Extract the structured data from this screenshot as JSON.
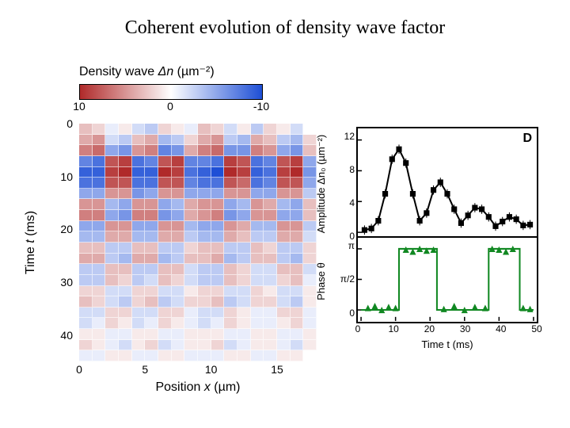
{
  "title": "Coherent evolution of density wave factor",
  "colorbar": {
    "title_prefix": "Density wave  ",
    "title_sym": "Δn",
    "title_unit": " (µm⁻²)",
    "ticks": [
      "10",
      "0",
      "-10"
    ],
    "vmin": -10,
    "vmax": 10,
    "neg_color": "#1e4fd6",
    "zero_color": "#ffffff",
    "pos_color": "#b02a2a"
  },
  "heatmap": {
    "xlabel_prefix": "Position ",
    "xlabel_sym": "x",
    "xlabel_unit": " (µm)",
    "ylabel_prefix": "Time ",
    "ylabel_sym": "t",
    "ylabel_unit": " (ms)",
    "x_ticks": [
      0,
      5,
      10,
      15
    ],
    "y_ticks": [
      0,
      10,
      20,
      30,
      40
    ],
    "x_min": 0,
    "x_max": 18,
    "y_min": 0,
    "y_max": 45,
    "nx": 18,
    "ny": 22,
    "cells": [
      [
        3,
        2,
        -1,
        1,
        -2,
        -3,
        2,
        1,
        -1,
        3,
        2,
        -2,
        1,
        -3,
        2,
        1,
        -2,
        0
      ],
      [
        4,
        5,
        -2,
        -3,
        3,
        4,
        -4,
        -3,
        2,
        4,
        5,
        -3,
        -4,
        4,
        3,
        -3,
        -4,
        2
      ],
      [
        6,
        7,
        -5,
        -6,
        5,
        6,
        -7,
        -6,
        4,
        6,
        7,
        -6,
        -6,
        6,
        5,
        -5,
        -6,
        3
      ],
      [
        -7,
        -8,
        8,
        9,
        -8,
        -7,
        8,
        9,
        -7,
        -7,
        -8,
        9,
        8,
        -8,
        -7,
        8,
        9,
        -5
      ],
      [
        -9,
        -9,
        9,
        10,
        -9,
        -9,
        10,
        9,
        -8,
        -9,
        -10,
        10,
        9,
        -9,
        -8,
        9,
        10,
        -6
      ],
      [
        -8,
        -8,
        8,
        8,
        -8,
        -8,
        8,
        8,
        -7,
        -8,
        -8,
        8,
        7,
        -8,
        -7,
        8,
        8,
        -5
      ],
      [
        -5,
        -5,
        5,
        5,
        -6,
        -5,
        5,
        5,
        -5,
        -5,
        -5,
        5,
        5,
        -5,
        -5,
        5,
        5,
        -3
      ],
      [
        5,
        5,
        -4,
        -5,
        5,
        5,
        -5,
        -4,
        4,
        5,
        5,
        -5,
        -4,
        5,
        4,
        -4,
        -5,
        3
      ],
      [
        6,
        6,
        -5,
        -6,
        6,
        6,
        -6,
        -5,
        4,
        5,
        6,
        -6,
        -5,
        5,
        5,
        -5,
        -5,
        3
      ],
      [
        -5,
        -5,
        5,
        5,
        -5,
        -5,
        5,
        5,
        -4,
        -5,
        -5,
        5,
        4,
        -4,
        -4,
        5,
        5,
        -3
      ],
      [
        -4,
        -4,
        4,
        4,
        -4,
        -4,
        4,
        4,
        -3,
        -4,
        -4,
        4,
        3,
        -3,
        -3,
        4,
        4,
        -2
      ],
      [
        3,
        3,
        -3,
        -3,
        3,
        3,
        -3,
        -3,
        2,
        3,
        3,
        -3,
        -3,
        3,
        2,
        -3,
        -3,
        2
      ],
      [
        4,
        4,
        -3,
        -4,
        4,
        4,
        -4,
        -3,
        3,
        3,
        4,
        -4,
        -3,
        3,
        3,
        -3,
        -4,
        2
      ],
      [
        -3,
        -3,
        3,
        3,
        -3,
        -3,
        3,
        3,
        -2,
        -3,
        -3,
        3,
        2,
        -2,
        -2,
        3,
        3,
        -2
      ],
      [
        -3,
        -3,
        3,
        2,
        -3,
        -2,
        3,
        2,
        -2,
        -3,
        -3,
        3,
        2,
        -2,
        -2,
        2,
        3,
        -1
      ],
      [
        2,
        2,
        -2,
        -2,
        2,
        2,
        -2,
        -2,
        1,
        2,
        2,
        -2,
        -2,
        2,
        1,
        -2,
        -2,
        1
      ],
      [
        3,
        2,
        -2,
        -3,
        2,
        3,
        -3,
        -2,
        2,
        2,
        3,
        -3,
        -2,
        2,
        2,
        -2,
        -3,
        1
      ],
      [
        -2,
        -2,
        2,
        2,
        -2,
        -2,
        2,
        2,
        -1,
        -2,
        -2,
        2,
        1,
        -1,
        -1,
        2,
        2,
        -1
      ],
      [
        -2,
        -1,
        2,
        1,
        -2,
        -1,
        2,
        1,
        -1,
        -2,
        -1,
        2,
        1,
        -1,
        -1,
        1,
        2,
        -1
      ],
      [
        1,
        1,
        -1,
        -1,
        1,
        1,
        -1,
        -1,
        1,
        1,
        1,
        -1,
        -1,
        1,
        1,
        -1,
        -1,
        1
      ],
      [
        2,
        1,
        -1,
        -2,
        1,
        2,
        -2,
        -1,
        1,
        1,
        2,
        -2,
        -1,
        1,
        1,
        -1,
        -2,
        1
      ],
      [
        -1,
        -1,
        1,
        1,
        -1,
        -1,
        1,
        1,
        -1,
        -1,
        -1,
        1,
        1,
        -1,
        -1,
        1,
        1,
        0
      ]
    ]
  },
  "amplitude": {
    "panel_label": "D",
    "ylabel": "Amplitude Δn₀ (µm⁻²)",
    "y_ticks": [
      0,
      4,
      8,
      12
    ],
    "ylim": [
      0,
      13
    ],
    "xlim": [
      0,
      50
    ],
    "line_color": "#000000",
    "marker_color": "#000000",
    "marker_size": 3.5,
    "line_width": 2,
    "points_t": [
      1,
      3,
      5,
      7,
      9,
      11,
      13,
      15,
      17,
      19,
      21,
      23,
      25,
      27,
      29,
      31,
      33,
      35,
      37,
      39,
      41,
      43,
      45,
      47,
      49
    ],
    "points_y": [
      0.3,
      0.5,
      1.5,
      5.0,
      9.5,
      10.8,
      9.0,
      5.0,
      1.5,
      2.5,
      5.5,
      6.5,
      5.0,
      3.0,
      1.2,
      2.2,
      3.2,
      3.0,
      2.0,
      0.8,
      1.4,
      2.0,
      1.7,
      0.9,
      1.0
    ],
    "err": 0.6
  },
  "phase": {
    "ylabel": "Phase θ",
    "xlabel": "Time t (ms)",
    "y_ticks": [
      "0",
      "π/2",
      "π"
    ],
    "y_tick_vals": [
      0,
      1.5708,
      3.1416
    ],
    "ylim": [
      -0.4,
      3.5
    ],
    "xlim": [
      0,
      50
    ],
    "x_ticks": [
      0,
      10,
      20,
      30,
      40,
      50
    ],
    "line_color": "#118822",
    "marker_color": "#118822",
    "marker_size": 4,
    "line_width": 2,
    "step_t": [
      0,
      11,
      11,
      22,
      22,
      37,
      37,
      46,
      46,
      50
    ],
    "step_y": [
      0,
      0,
      3.1416,
      3.1416,
      0,
      0,
      3.1416,
      3.1416,
      0,
      0
    ],
    "pts_t": [
      2,
      4,
      6,
      8,
      10,
      13,
      15,
      17,
      19,
      21,
      24,
      27,
      30,
      33,
      36,
      38,
      40,
      42,
      44,
      47,
      49
    ],
    "pts_y": [
      0.1,
      0.2,
      0.0,
      0.15,
      0.1,
      3.1,
      3.0,
      3.14,
      3.05,
      3.1,
      0.05,
      0.2,
      0.0,
      0.15,
      0.1,
      3.14,
      3.1,
      3.0,
      3.14,
      0.1,
      0.05
    ]
  }
}
